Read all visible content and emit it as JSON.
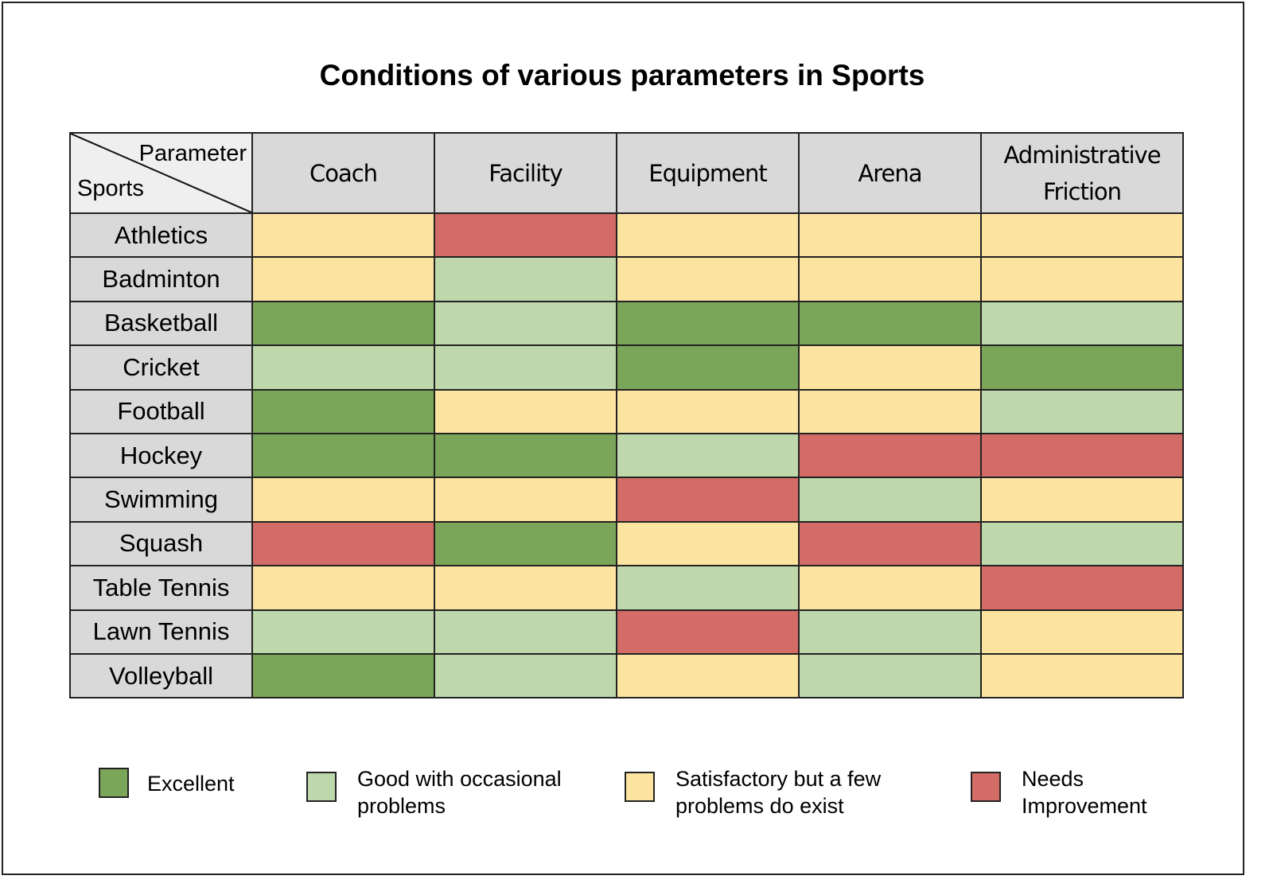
{
  "chart_data": {
    "type": "heatmap",
    "title": "Conditions of various parameters in Sports",
    "corner_labels": {
      "column_axis": "Parameter",
      "row_axis": "Sports"
    },
    "columns": [
      "Coach",
      "Facility",
      "Equipment",
      "Arena",
      "Administrative Friction"
    ],
    "rows": [
      "Athletics",
      "Badminton",
      "Basketball",
      "Cricket",
      "Football",
      "Hockey",
      "Swimming",
      "Squash",
      "Table Tennis",
      "Lawn Tennis",
      "Volleyball"
    ],
    "categories": {
      "E": {
        "label": "Excellent",
        "color": "#7ba65a"
      },
      "G": {
        "label": "Good with occasional problems",
        "color": "#bed8ac"
      },
      "S": {
        "label": "Satisfactory but a few problems do exist",
        "color": "#fce4a0"
      },
      "N": {
        "label": "Needs Improvement",
        "color": "#d36b67"
      }
    },
    "values": [
      [
        "S",
        "N",
        "S",
        "S",
        "S"
      ],
      [
        "S",
        "G",
        "S",
        "S",
        "S"
      ],
      [
        "E",
        "G",
        "E",
        "E",
        "G"
      ],
      [
        "G",
        "G",
        "E",
        "S",
        "E"
      ],
      [
        "E",
        "S",
        "S",
        "S",
        "G"
      ],
      [
        "E",
        "E",
        "G",
        "N",
        "N"
      ],
      [
        "S",
        "S",
        "N",
        "G",
        "S"
      ],
      [
        "N",
        "E",
        "S",
        "N",
        "G"
      ],
      [
        "S",
        "S",
        "G",
        "S",
        "N"
      ],
      [
        "G",
        "G",
        "N",
        "G",
        "S"
      ],
      [
        "E",
        "G",
        "S",
        "G",
        "S"
      ]
    ],
    "legend": {
      "position": "bottom",
      "items": [
        {
          "key": "E",
          "lines": [
            "Excellent"
          ]
        },
        {
          "key": "G",
          "lines": [
            "Good with occasional",
            "problems"
          ]
        },
        {
          "key": "S",
          "lines": [
            "Satisfactory but a few",
            "problems do exist"
          ]
        },
        {
          "key": "N",
          "lines": [
            "Needs",
            "Improvement"
          ]
        }
      ]
    }
  }
}
